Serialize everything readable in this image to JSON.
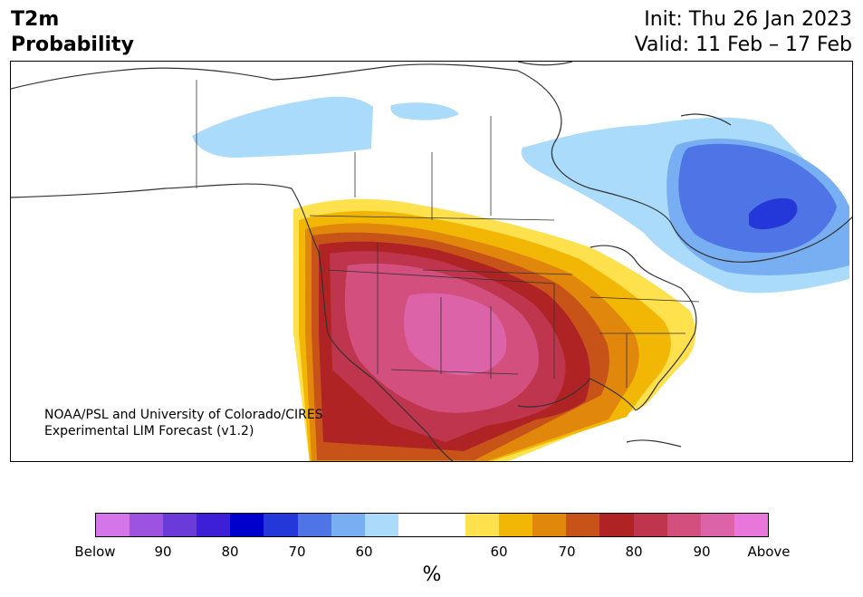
{
  "header": {
    "title_line1": "T2m",
    "title_line2": "Probability",
    "init_label": "Init: Thu 26 Jan 2023",
    "valid_label": "Valid: 11 Feb – 17 Feb"
  },
  "credit": {
    "line1": "NOAA/PSL and University of Colorado/CIRES",
    "line2": "Experimental LIM Forecast (v1.2)"
  },
  "colorbar": {
    "colors": [
      "#d475ea",
      "#9d53e0",
      "#6b3bd9",
      "#3c1fd6",
      "#0000cc",
      "#2437d8",
      "#4f74e6",
      "#78aef2",
      "#aadbfb",
      "#ffffff",
      "#ffffff",
      "#ffe04d",
      "#f2b705",
      "#e0870c",
      "#c85318",
      "#b02324",
      "#c0354e",
      "#d24f7e",
      "#dc63a8",
      "#e876db"
    ],
    "tick_labels": [
      "Below",
      "90",
      "80",
      "70",
      "60",
      "60",
      "70",
      "80",
      "90",
      "Above"
    ],
    "unit": "%"
  },
  "map": {
    "colors": {
      "land": "#ffffff",
      "border": "#333333",
      "cold_light": "#aadbfb",
      "cold_mid": "#78aef2",
      "cold_strong": "#4f74e6",
      "cold_core": "#2437d8",
      "warm_yellow": "#ffe04d",
      "warm_gold": "#f2b705",
      "warm_orange": "#e0870c",
      "warm_burnt": "#c85318",
      "warm_red": "#b02324",
      "warm_crimson": "#c0354e",
      "warm_rose": "#d24f7e",
      "warm_pink": "#dc63a8"
    }
  }
}
